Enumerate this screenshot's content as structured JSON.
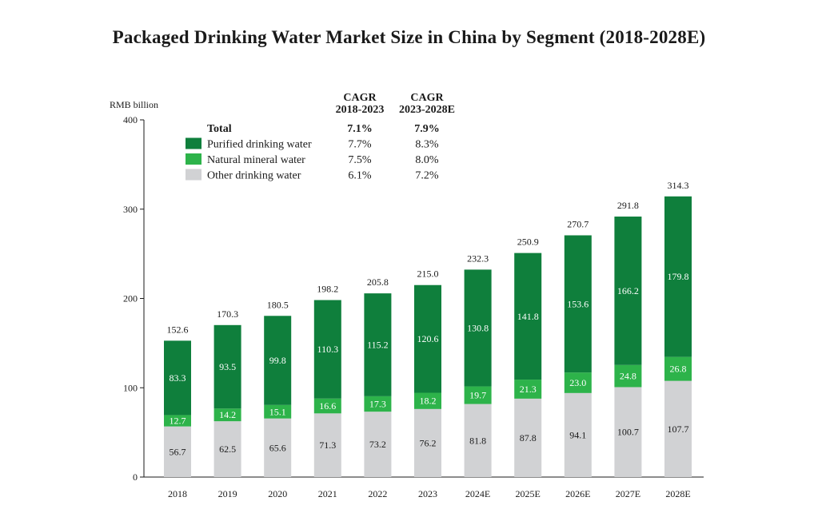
{
  "chart_data": {
    "type": "bar",
    "stacked": true,
    "title": "Packaged Drinking Water Market Size in China by Segment (2018-2028E)",
    "ylabel": "RMB billion",
    "ylim": [
      0,
      400
    ],
    "yticks": [
      0,
      100,
      200,
      300,
      400
    ],
    "grid": false,
    "categories": [
      "2018",
      "2019",
      "2020",
      "2021",
      "2022",
      "2023",
      "2024E",
      "2025E",
      "2026E",
      "2027E",
      "2028E"
    ],
    "series": [
      {
        "name": "Other drinking water",
        "color": "#d1d2d4",
        "label_color": "#1a1a1a",
        "values": [
          56.7,
          62.5,
          65.6,
          71.3,
          73.2,
          76.2,
          81.8,
          87.8,
          94.1,
          100.7,
          107.7
        ]
      },
      {
        "name": "Natural mineral water",
        "color": "#2db34a",
        "label_color": "#ffffff",
        "values": [
          12.7,
          14.2,
          15.1,
          16.6,
          17.3,
          18.2,
          19.7,
          21.3,
          23.0,
          24.8,
          26.8
        ]
      },
      {
        "name": "Purified drinking water",
        "color": "#0f7f3c",
        "label_color": "#ffffff",
        "values": [
          83.3,
          93.5,
          99.8,
          110.3,
          115.2,
          120.6,
          130.8,
          141.8,
          153.6,
          166.2,
          179.8
        ]
      }
    ],
    "totals": [
      "152.6",
      "170.3",
      "180.5",
      "198.2",
      "205.8",
      "215.0",
      "232.3",
      "250.9",
      "270.7",
      "291.8",
      "314.3"
    ],
    "legend": {
      "placement": "top-left",
      "cagr_headers": [
        [
          "CAGR",
          "2018-2023"
        ],
        [
          "CAGR",
          "2023-2028E"
        ]
      ],
      "rows": [
        {
          "label": "Total",
          "bold": true,
          "swatch": null,
          "cagr1": "7.1%",
          "cagr2": "7.9%"
        },
        {
          "label": "Purified drinking water",
          "bold": false,
          "swatch": "#0f7f3c",
          "cagr1": "7.7%",
          "cagr2": "8.3%"
        },
        {
          "label": "Natural mineral water",
          "bold": false,
          "swatch": "#2db34a",
          "cagr1": "7.5%",
          "cagr2": "8.0%"
        },
        {
          "label": "Other drinking water",
          "bold": false,
          "swatch": "#d1d2d4",
          "cagr1": "6.1%",
          "cagr2": "7.2%"
        }
      ]
    }
  }
}
